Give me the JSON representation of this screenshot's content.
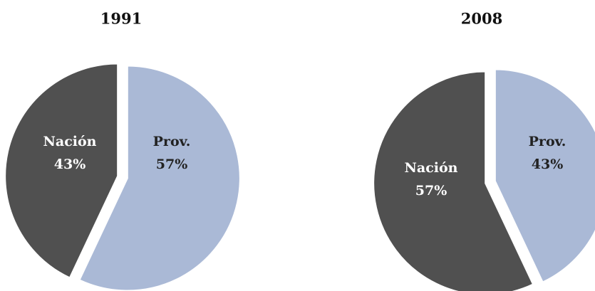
{
  "chart_data": [
    {
      "type": "pie",
      "title": "1991",
      "categories": [
        "Prov.",
        "Nación"
      ],
      "values": [
        57,
        43
      ],
      "value_labels": [
        "57%",
        "43%"
      ],
      "colors": [
        "#aab9d6",
        "#505050"
      ]
    },
    {
      "type": "pie",
      "title": "2008",
      "categories": [
        "Prov.",
        "Nación"
      ],
      "values": [
        43,
        57
      ],
      "value_labels": [
        "43%",
        "57%"
      ],
      "colors": [
        "#aab9d6",
        "#505050"
      ]
    }
  ]
}
